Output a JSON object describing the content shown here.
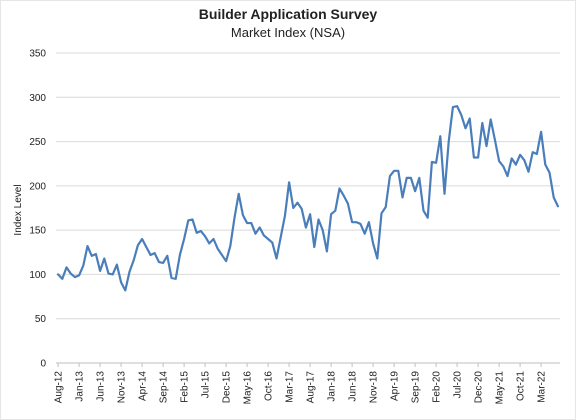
{
  "chart_data": {
    "type": "line",
    "title": "Builder Application Survey",
    "subtitle": "Market Index (NSA)",
    "xlabel": "",
    "ylabel": "Index Level",
    "ylim": [
      0,
      350
    ],
    "y_ticks": [
      "0",
      "50",
      "100",
      "150",
      "200",
      "250",
      "300",
      "350"
    ],
    "x_start": "Aug-12",
    "x_end": "Jul-22",
    "x_tick_labels": [
      "Aug-12",
      "Jan-13",
      "Jun-13",
      "Nov-13",
      "Apr-14",
      "Sep-14",
      "Feb-15",
      "Jul-15",
      "Dec-15",
      "May-16",
      "Oct-16",
      "Mar-17",
      "Aug-17",
      "Jan-18",
      "Jun-18",
      "Nov-18",
      "Apr-19",
      "Sep-19",
      "Feb-20",
      "Jul-20",
      "Dec-20",
      "May-21",
      "Oct-21",
      "Mar-22"
    ],
    "grid": true,
    "line_color": "#4a7ebb",
    "series": [
      {
        "values": [
          100,
          95,
          108,
          101,
          97,
          99,
          110,
          132,
          121,
          123,
          104,
          118,
          101,
          100,
          111,
          91,
          82,
          103,
          116,
          133,
          140,
          131,
          122,
          124,
          114,
          113,
          121,
          96,
          95,
          122,
          140,
          161,
          162,
          147,
          149,
          143,
          135,
          140,
          129,
          122,
          115,
          132,
          164,
          191,
          167,
          158,
          158,
          146,
          153,
          144,
          140,
          136,
          118,
          142,
          166,
          204,
          175,
          181,
          174,
          153,
          168,
          131,
          162,
          150,
          126,
          168,
          172,
          197,
          189,
          180,
          159,
          159,
          157,
          146,
          159,
          135,
          118,
          169,
          176,
          211,
          217,
          217,
          187,
          209,
          209,
          194,
          209,
          172,
          164,
          227,
          226,
          256,
          191,
          250,
          289,
          290,
          280,
          265,
          276,
          232,
          232,
          271,
          245,
          275,
          252,
          228,
          222,
          211,
          231,
          224,
          235,
          229,
          216,
          238,
          236,
          261,
          224,
          215,
          187,
          177
        ]
      }
    ]
  }
}
